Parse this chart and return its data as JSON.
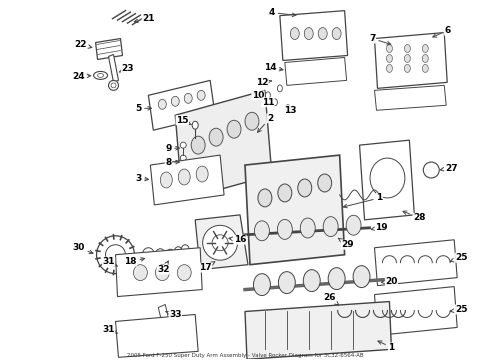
{
  "title": "2005 Ford F-250 Super Duty Arm Assembly - Valve Rocker Diagram for 3C3Z-6564-AB",
  "bg_color": "#ffffff",
  "lc": "#444444",
  "fig_width": 4.9,
  "fig_height": 3.6,
  "dpi": 100
}
